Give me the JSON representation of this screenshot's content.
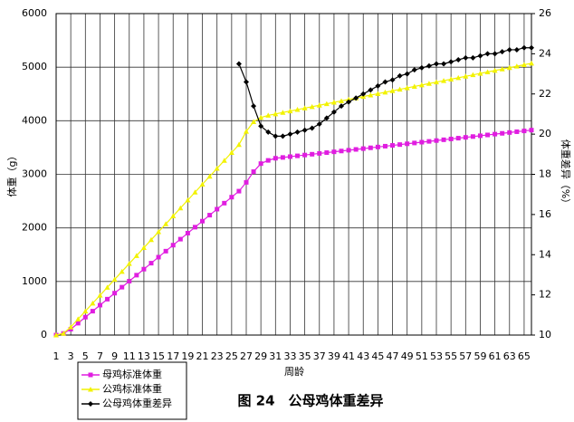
{
  "chart_data": {
    "type": "line",
    "title": "图 24　公母鸡体重差异",
    "x_label": "周龄",
    "y_label": "体重（g）",
    "y2_label": "体重差异（%）",
    "x": [
      1,
      2,
      3,
      4,
      5,
      6,
      7,
      8,
      9,
      10,
      11,
      12,
      13,
      14,
      15,
      16,
      17,
      18,
      19,
      20,
      21,
      22,
      23,
      24,
      25,
      26,
      27,
      28,
      29,
      30,
      31,
      32,
      33,
      34,
      35,
      36,
      37,
      38,
      39,
      40,
      41,
      42,
      43,
      44,
      45,
      46,
      47,
      48,
      49,
      50,
      51,
      52,
      53,
      54,
      55,
      56,
      57,
      58,
      59,
      60,
      61,
      62,
      63,
      64,
      65,
      66
    ],
    "xlim": [
      1,
      66
    ],
    "xticks": [
      1,
      3,
      5,
      7,
      9,
      11,
      13,
      15,
      17,
      19,
      21,
      23,
      25,
      27,
      29,
      31,
      33,
      35,
      37,
      39,
      41,
      43,
      45,
      47,
      49,
      51,
      53,
      55,
      57,
      59,
      61,
      63,
      65
    ],
    "ylim": [
      0,
      6000
    ],
    "yticks": [
      0,
      1000,
      2000,
      3000,
      4000,
      5000,
      6000
    ],
    "y2lim": [
      10,
      26
    ],
    "y2ticks": [
      10,
      12,
      14,
      16,
      18,
      20,
      22,
      24,
      26
    ],
    "grid": true,
    "legend": "bottom-left",
    "series": [
      {
        "name": "母鸡标准体重",
        "color": "#e01ee0",
        "marker": "square",
        "values": [
          0,
          30,
          110,
          222,
          334,
          446,
          558,
          670,
          782,
          894,
          1006,
          1118,
          1230,
          1342,
          1454,
          1566,
          1678,
          1790,
          1902,
          2014,
          2126,
          2238,
          2350,
          2462,
          2574,
          2686,
          2850,
          3050,
          3200,
          3260,
          3300,
          3315,
          3330,
          3345,
          3360,
          3375,
          3390,
          3405,
          3420,
          3435,
          3450,
          3465,
          3480,
          3495,
          3510,
          3525,
          3540,
          3555,
          3570,
          3585,
          3600,
          3615,
          3630,
          3645,
          3660,
          3675,
          3690,
          3705,
          3720,
          3735,
          3750,
          3765,
          3780,
          3795,
          3810,
          3825
        ]
      },
      {
        "name": "公鸡标准体重",
        "color": "#f2f200",
        "marker": "triangle",
        "values": [
          0,
          30,
          150,
          298,
          446,
          594,
          742,
          890,
          1038,
          1186,
          1334,
          1482,
          1630,
          1778,
          1926,
          2074,
          2222,
          2370,
          2518,
          2666,
          2814,
          2962,
          3110,
          3258,
          3406,
          3554,
          3800,
          3980,
          4060,
          4100,
          4127,
          4154,
          4181,
          4208,
          4235,
          4262,
          4289,
          4316,
          4343,
          4370,
          4397,
          4424,
          4451,
          4478,
          4505,
          4532,
          4559,
          4586,
          4613,
          4640,
          4667,
          4694,
          4721,
          4748,
          4775,
          4802,
          4829,
          4856,
          4883,
          4910,
          4937,
          4964,
          4991,
          5018,
          5045,
          5072
        ]
      },
      {
        "name": "公母鸡体重差异",
        "color": "#000000",
        "marker": "diamond",
        "axis": "y2",
        "values": [
          null,
          null,
          null,
          null,
          null,
          null,
          null,
          null,
          null,
          null,
          null,
          null,
          null,
          null,
          null,
          null,
          null,
          null,
          null,
          null,
          null,
          null,
          null,
          null,
          null,
          23.5,
          22.6,
          21.4,
          20.4,
          20.1,
          19.9,
          19.9,
          20.0,
          20.1,
          20.2,
          20.3,
          20.5,
          20.8,
          21.1,
          21.4,
          21.6,
          21.8,
          22.0,
          22.2,
          22.4,
          22.6,
          22.7,
          22.9,
          23.0,
          23.2,
          23.3,
          23.4,
          23.5,
          23.5,
          23.6,
          23.7,
          23.8,
          23.8,
          23.9,
          24.0,
          24.0,
          24.1,
          24.2,
          24.2,
          24.3,
          24.3
        ]
      }
    ]
  }
}
